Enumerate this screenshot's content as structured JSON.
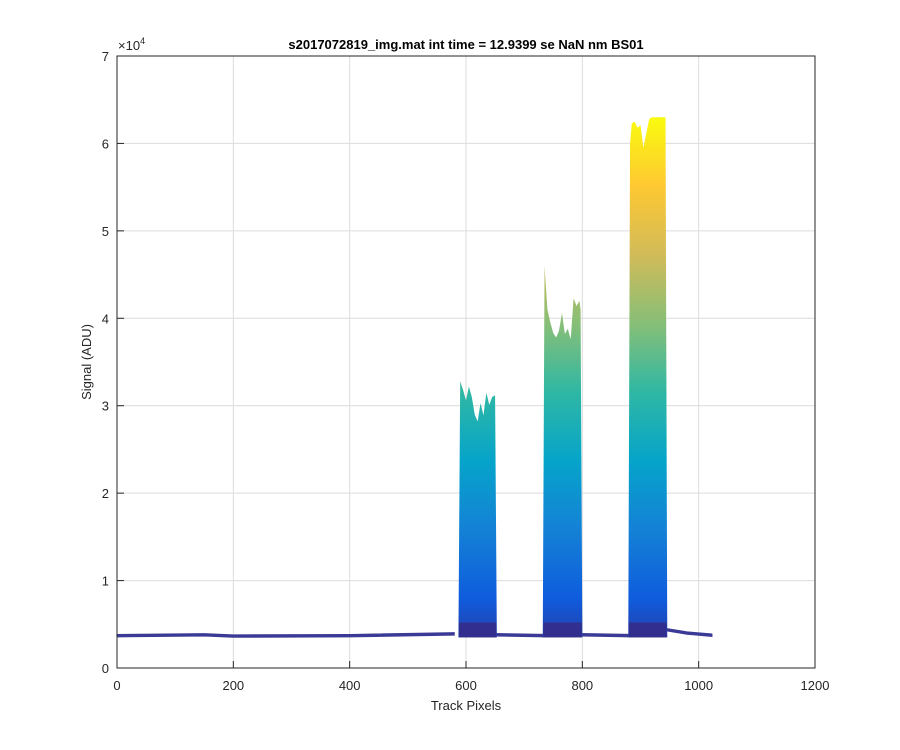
{
  "chart_data": {
    "type": "area",
    "title": "s2017072819_img.mat int time = 12.9399 se  NaN nm BS01",
    "xlabel": "Track Pixels",
    "ylabel": "Signal (ADU)",
    "y_exponent_label": "×10",
    "y_exponent_power": "4",
    "xlim": [
      0,
      1200
    ],
    "ylim": [
      0,
      70000
    ],
    "x_ticks": [
      0,
      200,
      400,
      600,
      800,
      1000,
      1200
    ],
    "y_ticks": [
      0,
      10000,
      20000,
      30000,
      40000,
      50000,
      60000,
      70000
    ],
    "x_tick_labels": [
      "0",
      "200",
      "400",
      "600",
      "800",
      "1000",
      "1200"
    ],
    "y_tick_labels": [
      "0",
      "1",
      "2",
      "3",
      "4",
      "5",
      "6",
      "7"
    ],
    "grid": true,
    "colormap": "parula",
    "colormap_stops": [
      "#352a87",
      "#0f5cdd",
      "#1481d6",
      "#06a4ca",
      "#2eb7a4",
      "#87bf77",
      "#d1bb59",
      "#fec832",
      "#f9fb0e"
    ],
    "baseline": [
      [
        0,
        3700
      ],
      [
        150,
        3800
      ],
      [
        200,
        3650
      ],
      [
        400,
        3700
      ],
      [
        580,
        3900
      ]
    ],
    "peaks": [
      {
        "name": "peak-1",
        "x_start": 590,
        "x_end": 650,
        "top": [
          [
            590,
            32800
          ],
          [
            595,
            31800
          ],
          [
            600,
            30600
          ],
          [
            605,
            32200
          ],
          [
            610,
            31000
          ],
          [
            615,
            29000
          ],
          [
            620,
            28200
          ],
          [
            625,
            30300
          ],
          [
            630,
            28900
          ],
          [
            635,
            31500
          ],
          [
            640,
            30100
          ],
          [
            645,
            31000
          ],
          [
            650,
            31200
          ]
        ]
      },
      {
        "name": "peak-2",
        "x_start": 735,
        "x_end": 797,
        "top": [
          [
            735,
            46000
          ],
          [
            740,
            41000
          ],
          [
            745,
            39500
          ],
          [
            750,
            38300
          ],
          [
            755,
            37800
          ],
          [
            760,
            38600
          ],
          [
            765,
            40600
          ],
          [
            770,
            38200
          ],
          [
            775,
            38800
          ],
          [
            780,
            37600
          ],
          [
            785,
            42300
          ],
          [
            790,
            41400
          ],
          [
            795,
            42000
          ],
          [
            797,
            41000
          ]
        ]
      },
      {
        "name": "peak-3",
        "x_start": 882,
        "x_end": 943,
        "top": [
          [
            882,
            60000
          ],
          [
            885,
            62300
          ],
          [
            890,
            62500
          ],
          [
            895,
            61800
          ],
          [
            900,
            62100
          ],
          [
            905,
            59500
          ],
          [
            910,
            61200
          ],
          [
            915,
            62800
          ],
          [
            920,
            63000
          ],
          [
            925,
            63000
          ],
          [
            930,
            63000
          ],
          [
            935,
            63000
          ],
          [
            940,
            63000
          ],
          [
            943,
            63000
          ]
        ]
      }
    ],
    "tail": [
      [
        943,
        4400
      ],
      [
        980,
        4000
      ],
      [
        1023,
        3750
      ]
    ]
  }
}
